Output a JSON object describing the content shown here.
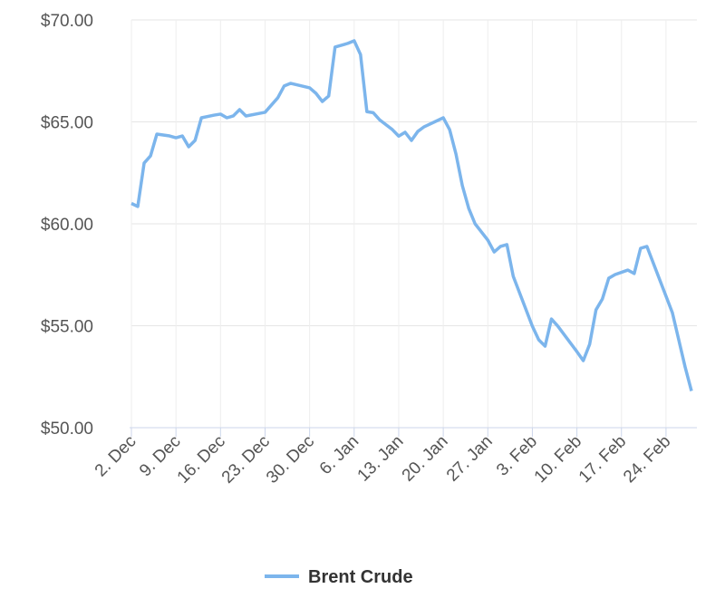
{
  "chart_data": {
    "type": "line",
    "x": [
      0,
      1,
      2,
      3,
      4,
      6,
      7,
      8,
      9,
      10,
      11,
      13,
      14,
      15,
      16,
      17,
      18,
      21,
      23,
      24,
      25,
      28,
      29,
      30,
      31,
      32,
      34,
      35,
      36,
      37,
      38,
      39,
      41,
      42,
      43,
      44,
      45,
      46,
      49,
      50,
      51,
      52,
      53,
      54,
      56,
      57,
      58,
      59,
      60,
      63,
      64,
      65,
      66,
      67,
      70,
      71,
      72,
      73,
      74,
      75,
      76,
      78,
      79,
      80,
      81,
      85,
      86,
      87,
      88
    ],
    "series": [
      {
        "name": "Brent Crude",
        "color": "#7cb5ec",
        "values": [
          61.0,
          60.85,
          62.98,
          63.33,
          64.4,
          64.31,
          64.22,
          64.31,
          63.78,
          64.09,
          65.2,
          65.33,
          65.38,
          65.2,
          65.29,
          65.6,
          65.29,
          65.47,
          66.18,
          66.76,
          66.89,
          66.67,
          66.4,
          66.0,
          66.27,
          68.67,
          68.85,
          68.98,
          68.3,
          65.5,
          65.45,
          65.1,
          64.62,
          64.3,
          64.49,
          64.09,
          64.53,
          64.76,
          65.2,
          64.62,
          63.42,
          61.87,
          60.76,
          60.0,
          59.2,
          58.62,
          58.89,
          58.98,
          57.42,
          54.98,
          54.31,
          54.0,
          55.33,
          54.98,
          53.73,
          53.29,
          54.09,
          55.78,
          56.31,
          57.33,
          57.51,
          57.73,
          57.56,
          58.8,
          58.89,
          55.64,
          54.31,
          52.98,
          51.8
        ]
      }
    ],
    "xlim": [
      0,
      88
    ],
    "xticks": [
      {
        "value": 0,
        "label": "2. Dec"
      },
      {
        "value": 7,
        "label": "9. Dec"
      },
      {
        "value": 14,
        "label": "16. Dec"
      },
      {
        "value": 21,
        "label": "23. Dec"
      },
      {
        "value": 28,
        "label": "30. Dec"
      },
      {
        "value": 35,
        "label": "6. Jan"
      },
      {
        "value": 42,
        "label": "13. Jan"
      },
      {
        "value": 49,
        "label": "20. Jan"
      },
      {
        "value": 56,
        "label": "27. Jan"
      },
      {
        "value": 63,
        "label": "3. Feb"
      },
      {
        "value": 70,
        "label": "10. Feb"
      },
      {
        "value": 77,
        "label": "17. Feb"
      },
      {
        "value": 84,
        "label": "24. Feb"
      }
    ],
    "ylim": [
      50,
      70
    ],
    "yticks": [
      {
        "value": 50,
        "label": "$50.00"
      },
      {
        "value": 55,
        "label": "$55.00"
      },
      {
        "value": 60,
        "label": "$60.00"
      },
      {
        "value": 65,
        "label": "$65.00"
      },
      {
        "value": 70,
        "label": "$70.00"
      }
    ],
    "grid": true
  }
}
